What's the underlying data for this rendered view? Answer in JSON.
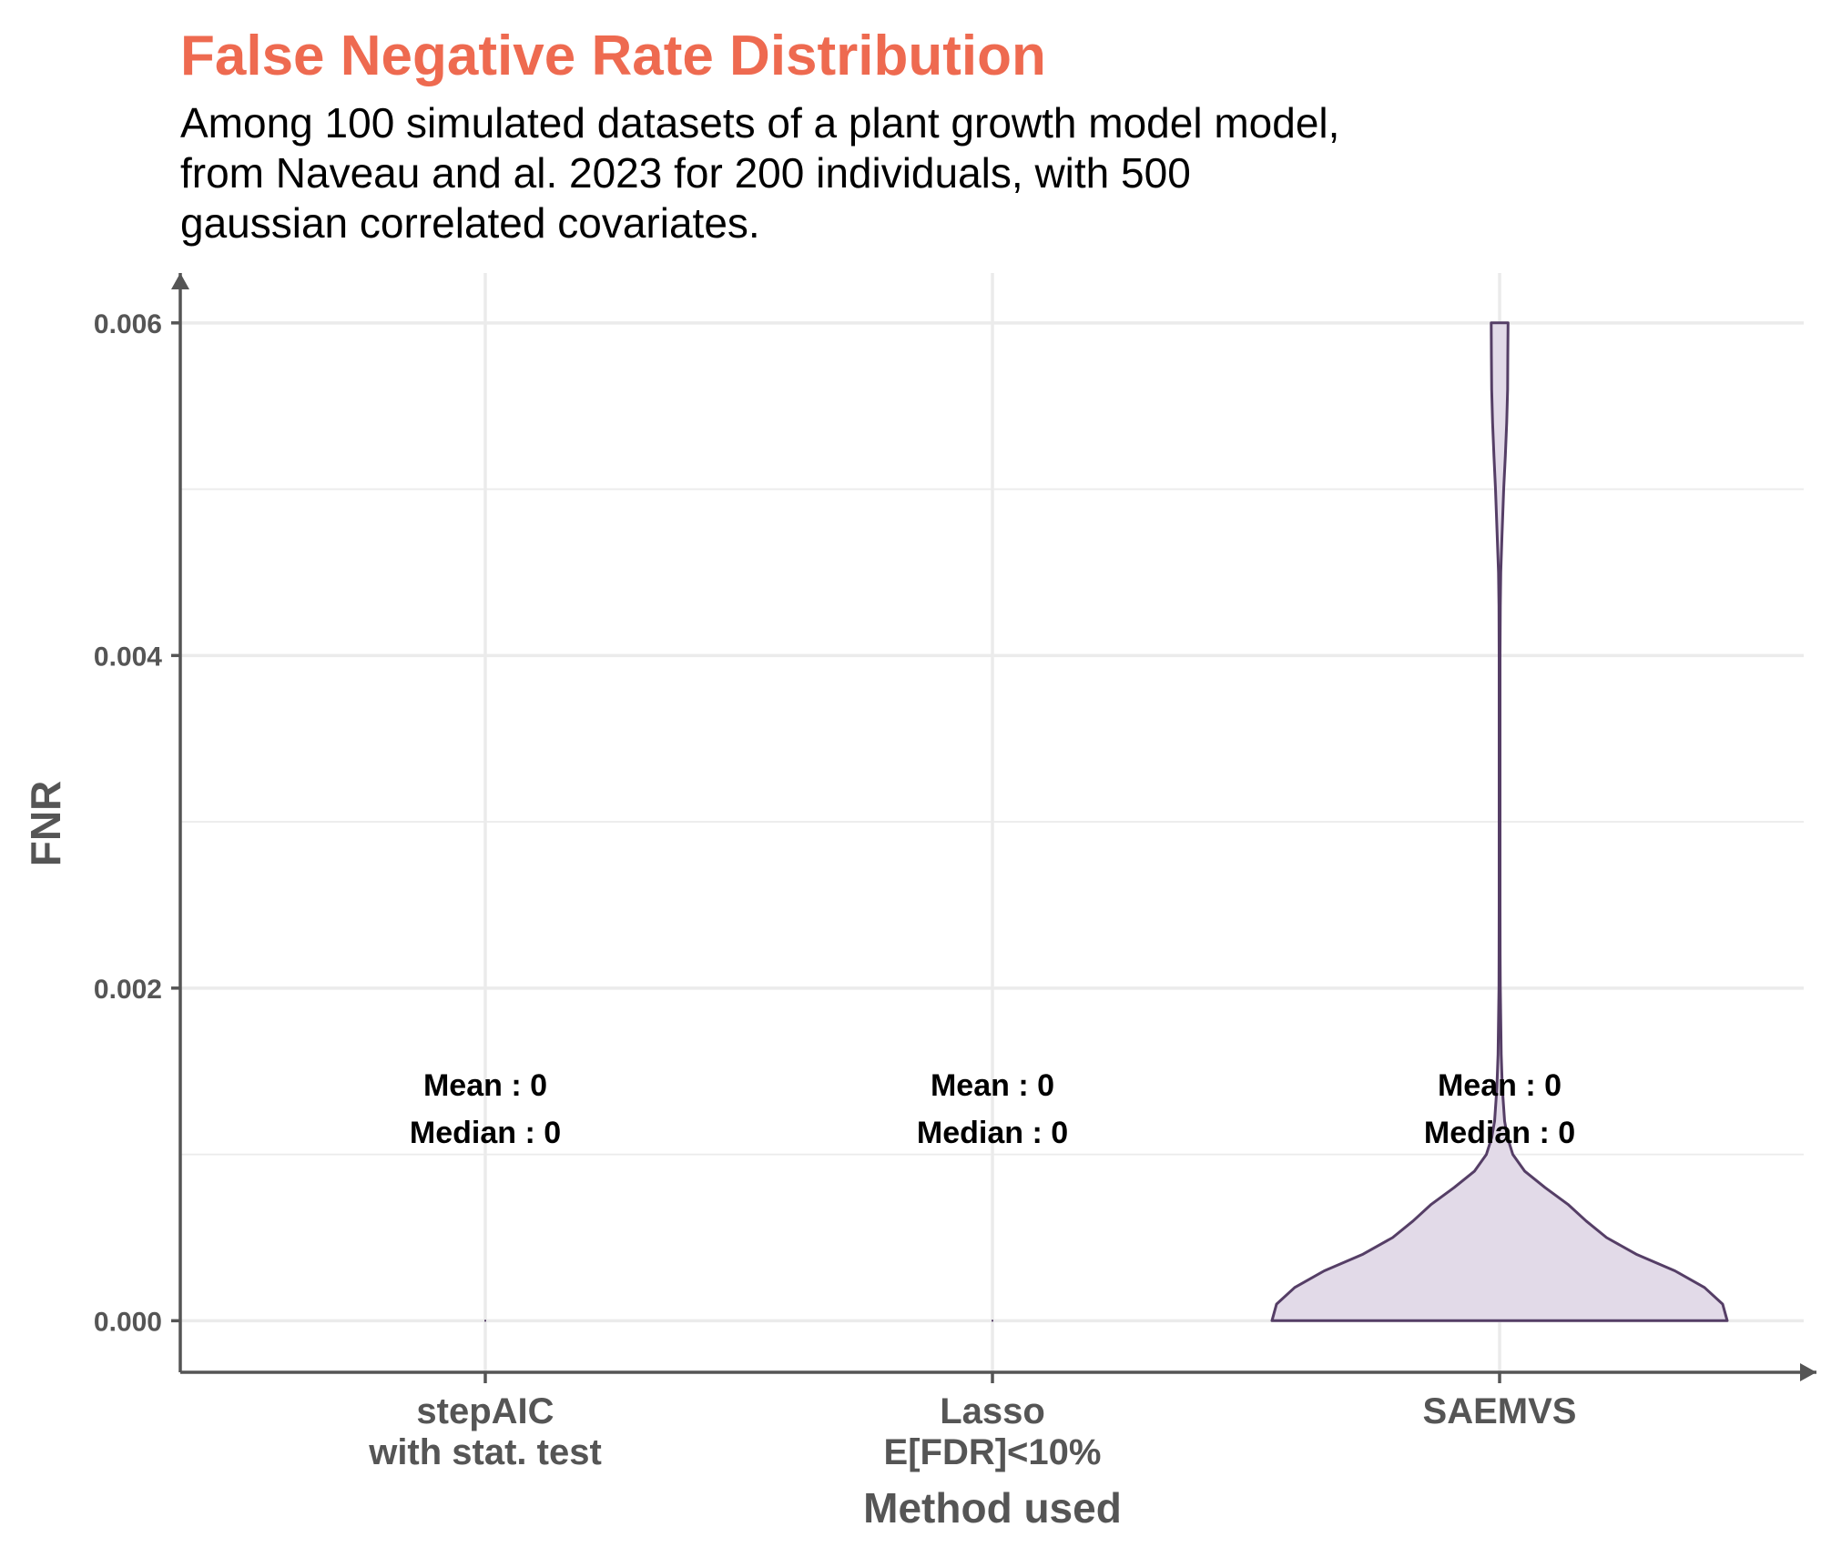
{
  "title": "False Negative Rate Distribution",
  "subtitle_lines": [
    "Among 100 simulated datasets of a plant growth model model,",
    "from Naveau and al. 2023 for 200 individuals, with 500",
    "gaussian correlated covariates."
  ],
  "colors": {
    "title": "#EE6A50",
    "axis": "#555555",
    "grid": "#EBEBEB",
    "violin_fill": "#E2DAE8",
    "violin_stroke": "#553E66"
  },
  "chart_data": {
    "type": "violin",
    "title": "False Negative Rate Distribution",
    "xlabel": "Method used",
    "ylabel": "FNR",
    "ylim": [
      -0.00031,
      0.0063
    ],
    "y_ticks": [
      "0.000",
      "0.002",
      "0.004",
      "0.006"
    ],
    "y_tick_values": [
      0,
      0.002,
      0.004,
      0.006
    ],
    "grid": true,
    "categories": [
      {
        "lines": [
          "stepAIC",
          "with stat. test"
        ]
      },
      {
        "lines": [
          "Lasso",
          "E[FDR]<10%"
        ]
      },
      {
        "lines": [
          "SAEMVS"
        ]
      }
    ],
    "annotations": [
      {
        "category": 0,
        "mean_label": "Mean : 0",
        "median_label": "Median : 0"
      },
      {
        "category": 1,
        "mean_label": "Mean : 0",
        "median_label": "Median : 0"
      },
      {
        "category": 2,
        "mean_label": "Mean : 0",
        "median_label": "Median : 0"
      }
    ],
    "violins": [
      {
        "category": 0,
        "range": [
          0,
          0
        ],
        "density": []
      },
      {
        "category": 1,
        "range": [
          0,
          0
        ],
        "density": []
      },
      {
        "category": 2,
        "range": [
          0,
          0.006
        ],
        "density": [
          [
            0.0,
            1.0
          ],
          [
            0.0001,
            0.98
          ],
          [
            0.0002,
            0.9
          ],
          [
            0.0003,
            0.77
          ],
          [
            0.0004,
            0.6
          ],
          [
            0.0005,
            0.47
          ],
          [
            0.0006,
            0.38
          ],
          [
            0.0007,
            0.3
          ],
          [
            0.0008,
            0.2
          ],
          [
            0.0009,
            0.11
          ],
          [
            0.001,
            0.058
          ],
          [
            0.0011,
            0.035
          ],
          [
            0.0012,
            0.022
          ],
          [
            0.0014,
            0.012
          ],
          [
            0.0016,
            0.007
          ],
          [
            0.0018,
            0.005
          ],
          [
            0.002,
            0.003
          ],
          [
            0.0022,
            0.0025
          ],
          [
            0.0025,
            0.002
          ],
          [
            0.003,
            0.002
          ],
          [
            0.0035,
            0.002
          ],
          [
            0.004,
            0.002
          ],
          [
            0.0043,
            0.003
          ],
          [
            0.0045,
            0.005
          ],
          [
            0.0047,
            0.01
          ],
          [
            0.005,
            0.018
          ],
          [
            0.0052,
            0.025
          ],
          [
            0.0054,
            0.031
          ],
          [
            0.0056,
            0.035
          ],
          [
            0.0058,
            0.036
          ],
          [
            0.006,
            0.037
          ]
        ]
      }
    ]
  }
}
